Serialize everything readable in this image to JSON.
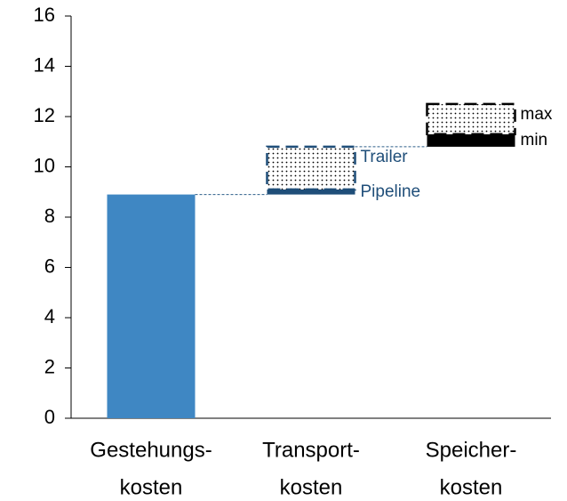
{
  "chart_data": {
    "type": "waterfall",
    "categories": [
      [
        "Gestehungs-",
        "kosten"
      ],
      [
        "Transport-",
        "kosten"
      ],
      [
        "Speicher-",
        "kosten"
      ]
    ],
    "series": [
      {
        "color": "#3f87c3",
        "style": "solid",
        "values": [
          8.9,
          null,
          null
        ]
      },
      {
        "name": "Pipeline",
        "color": "#1f4e79",
        "style": "solid",
        "values": [
          null,
          0.2,
          null
        ]
      },
      {
        "name": "Trailer",
        "color": "#1f4e79",
        "style": "dotted",
        "values": [
          null,
          1.7,
          null
        ]
      },
      {
        "name": "min",
        "color": "#000000",
        "style": "solid",
        "values": [
          null,
          null,
          0.5
        ]
      },
      {
        "name": "max",
        "color": "#000000",
        "style": "dotted",
        "values": [
          null,
          null,
          1.2
        ]
      }
    ],
    "ylim": [
      0,
      16
    ],
    "yticks": [
      0,
      2,
      4,
      6,
      8,
      10,
      12,
      14,
      16
    ]
  }
}
